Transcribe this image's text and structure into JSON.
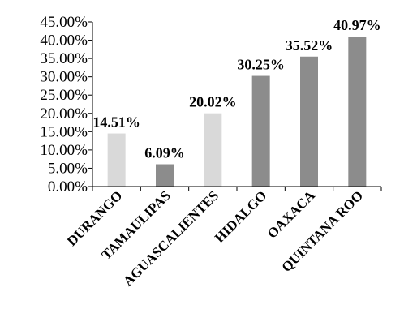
{
  "chart_data": {
    "type": "bar",
    "title": "",
    "xlabel": "",
    "ylabel": "",
    "ylim": [
      0,
      45
    ],
    "yticks": [
      0,
      5,
      10,
      15,
      20,
      25,
      30,
      35,
      40,
      45
    ],
    "ytick_labels": [
      "0.00%",
      "5.00%",
      "10.00%",
      "15.00%",
      "20.00%",
      "25.00%",
      "30.00%",
      "35.00%",
      "40.00%",
      "45.00%"
    ],
    "grid": false,
    "legend": "none",
    "categories": [
      "DURANGO",
      "TAMAULIPAS",
      "AGUASCALIENTES",
      "HIDALGO",
      "OAXACA",
      "QUINTANA ROO"
    ],
    "values": [
      14.51,
      6.09,
      20.02,
      30.25,
      35.52,
      40.97
    ],
    "data_labels": [
      "14.51%",
      "6.09%",
      "20.02%",
      "30.25%",
      "35.52%",
      "40.97%"
    ],
    "bar_colors": [
      "#d9d9d9",
      "#8c8c8c",
      "#d9d9d9",
      "#8c8c8c",
      "#8c8c8c",
      "#8c8c8c"
    ]
  }
}
